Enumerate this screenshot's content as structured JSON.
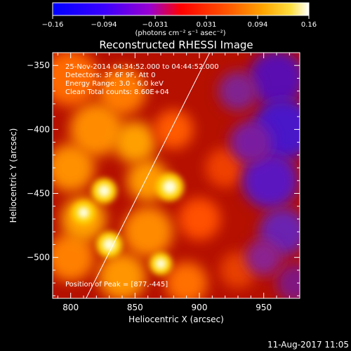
{
  "colorbar": {
    "tick_labels": [
      "−0.16",
      "−0.094",
      "−0.031",
      "0.031",
      "0.094",
      "0.16"
    ],
    "range": [
      -0.16,
      0.16
    ],
    "units_label": "(photons cm⁻² s⁻¹ asec⁻²)"
  },
  "chart_data": {
    "type": "heatmap",
    "title": "Reconstructed RHESSI Image",
    "xlabel": "Heliocentric X (arcsec)",
    "ylabel": "Heliocentric Y (arcsec)",
    "xlim": [
      786,
      978
    ],
    "ylim": [
      -532,
      -340
    ],
    "x_ticks": [
      800,
      850,
      900,
      950
    ],
    "x_tick_labels": [
      "800",
      "850",
      "900",
      "950"
    ],
    "y_ticks": [
      -350,
      -400,
      -450,
      -500
    ],
    "y_tick_labels": [
      "−350",
      "−400",
      "−450",
      "−500"
    ],
    "colormap": "rainbow-like (blue → purple → red → orange → yellow → white)",
    "sources": [
      {
        "x": 877,
        "y": -445,
        "brightness": 0.16
      },
      {
        "x": 826,
        "y": -448,
        "brightness": 0.13
      },
      {
        "x": 830,
        "y": -490,
        "brightness": 0.14
      },
      {
        "x": 810,
        "y": -465,
        "brightness": 0.11
      },
      {
        "x": 870,
        "y": -505,
        "brightness": 0.1
      }
    ],
    "limb": [
      {
        "x": 812,
        "y": -532
      },
      {
        "x": 908,
        "y": -340
      }
    ],
    "annotations": [
      "25-Nov-2014 04:34:52.000 to 04:44:52.000",
      "Detectors: 3F 6F 9F, Att 0",
      "Energy Range: 3.0 - 6.0 keV",
      "Clean     Total counts: 8.60E+04"
    ],
    "peak_label": "Position of Peak = [877,-445]",
    "peak": [
      877,
      -445
    ],
    "grid": false
  },
  "footer": {
    "timestamp": "11-Aug-2017 11:05"
  }
}
